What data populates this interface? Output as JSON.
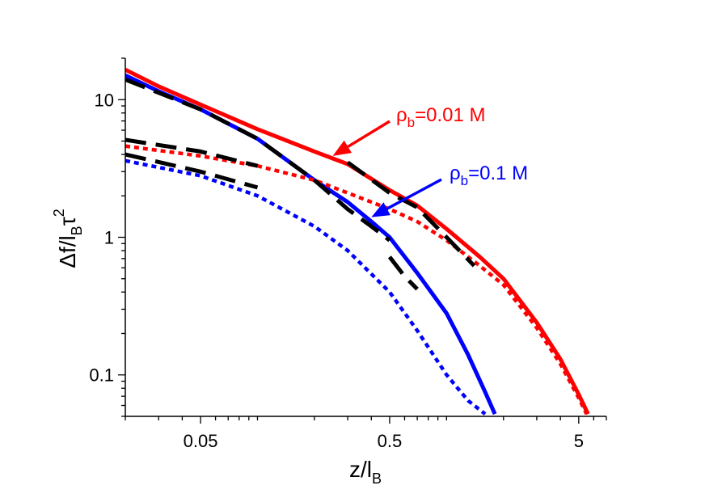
{
  "chart_data": {
    "type": "line",
    "x_scale": "log",
    "y_scale": "log",
    "xlim": [
      0.02,
      7
    ],
    "ylim": [
      0.05,
      20
    ],
    "xlabel": {
      "main": "z/l",
      "sub": "B"
    },
    "ylabel": {
      "main": "Δf/l",
      "sub": "B",
      "tau": "τ",
      "sup": "2"
    },
    "x_ticks": [
      {
        "value": 0.05,
        "label": "0.05"
      },
      {
        "value": 0.5,
        "label": "0.5"
      },
      {
        "value": 5,
        "label": "5"
      }
    ],
    "y_ticks": [
      {
        "value": 0.1,
        "label": "0.1"
      },
      {
        "value": 1,
        "label": "1"
      },
      {
        "value": 10,
        "label": "10"
      }
    ],
    "grid": false,
    "annotations": [
      {
        "prefix": "ρ",
        "sub": "b",
        "suffix": "=0.01 M",
        "color": "#ff0000",
        "at": [
          0.25,
          3.9
        ]
      },
      {
        "prefix": "ρ",
        "sub": "b",
        "suffix": "=0.1 M",
        "color": "#0000ff",
        "at": [
          0.4,
          1.4
        ]
      }
    ],
    "series": [
      {
        "color": "#ff0000",
        "style": "solid",
        "x": [
          0.02,
          0.03,
          0.05,
          0.1,
          0.2,
          0.3,
          0.5,
          0.7,
          1.0,
          1.5,
          2,
          3,
          4,
          5,
          5.6
        ],
        "y": [
          16.5,
          12.5,
          9.2,
          6.1,
          4.2,
          3.4,
          2.2,
          1.7,
          1.15,
          0.72,
          0.5,
          0.24,
          0.13,
          0.072,
          0.052
        ]
      },
      {
        "color": "#0000ff",
        "style": "solid",
        "x": [
          0.02,
          0.03,
          0.05,
          0.1,
          0.2,
          0.3,
          0.4,
          0.5,
          0.7,
          1.0,
          1.3,
          1.6,
          1.8
        ],
        "y": [
          15,
          11.5,
          8.5,
          5.2,
          2.6,
          1.8,
          1.3,
          1.0,
          0.55,
          0.28,
          0.14,
          0.075,
          0.052
        ]
      },
      {
        "color": "#ff0000",
        "style": "dotted",
        "x": [
          0.02,
          0.05,
          0.1,
          0.2,
          0.3,
          0.5,
          0.7,
          1.0,
          1.5,
          2,
          3,
          4,
          5,
          5.5
        ],
        "y": [
          4.6,
          3.9,
          3.3,
          2.6,
          2.1,
          1.6,
          1.3,
          0.95,
          0.62,
          0.45,
          0.22,
          0.12,
          0.068,
          0.052
        ]
      },
      {
        "color": "#0000ff",
        "style": "dotted",
        "x": [
          0.02,
          0.05,
          0.1,
          0.2,
          0.3,
          0.5,
          0.7,
          1.0,
          1.3,
          1.6
        ],
        "y": [
          3.6,
          2.8,
          2.0,
          1.2,
          0.8,
          0.4,
          0.21,
          0.1,
          0.065,
          0.052
        ]
      },
      {
        "color": "#000000",
        "style": "dashed",
        "x": [
          0.02,
          0.05,
          0.1,
          0.2,
          0.3,
          0.4,
          0.5
        ],
        "y": [
          14,
          8.5,
          5.2,
          2.6,
          1.6,
          1.2,
          0.95
        ]
      },
      {
        "color": "#000000",
        "style": "dashed",
        "x": [
          0.5,
          0.6,
          0.7
        ],
        "y": [
          0.72,
          0.52,
          0.42
        ]
      },
      {
        "color": "#000000",
        "style": "dashed",
        "x": [
          0.3,
          0.5,
          0.7,
          1.0,
          1.4
        ],
        "y": [
          3.5,
          2.1,
          1.65,
          1.0,
          0.62
        ]
      },
      {
        "color": "#000000",
        "style": "dashed",
        "x": [
          0.02,
          0.05,
          0.1
        ],
        "y": [
          5.1,
          4.2,
          3.3
        ]
      },
      {
        "color": "#000000",
        "style": "dashed",
        "x": [
          0.02,
          0.05,
          0.1
        ],
        "y": [
          4.0,
          3.0,
          2.3
        ]
      }
    ]
  }
}
